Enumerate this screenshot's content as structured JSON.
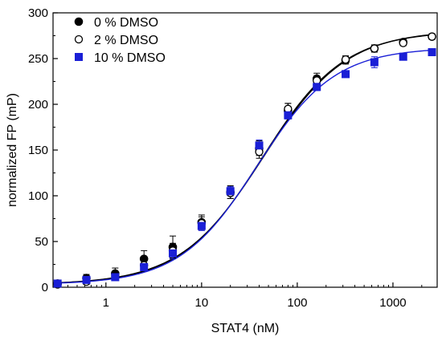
{
  "chart_data": {
    "type": "scatter",
    "xlabel": "STAT4 (nM)",
    "ylabel": "normalized FP (mP)",
    "xscale": "log",
    "xlim": [
      0.28,
      2900
    ],
    "ylim": [
      0,
      300
    ],
    "xticks": [
      1,
      10,
      100,
      1000
    ],
    "xtick_labels": [
      "1",
      "10",
      "100",
      "1000"
    ],
    "yticks": [
      0,
      50,
      100,
      150,
      200,
      250,
      300
    ],
    "ytick_labels": [
      "0",
      "50",
      "100",
      "150",
      "200",
      "250",
      "300"
    ],
    "grid": false,
    "legend_position": "top-left",
    "x": [
      0.3125,
      0.625,
      1.25,
      2.5,
      5,
      10,
      20,
      40,
      80,
      160,
      320,
      640,
      1280,
      2560
    ],
    "series": [
      {
        "name": "0 % DMSO",
        "marker": "filled-circle",
        "color": "#000000",
        "y": [
          4,
          10,
          15,
          31,
          44,
          71,
          104,
          152,
          193,
          228,
          248,
          261,
          268,
          274
        ],
        "err": [
          3,
          4,
          6,
          9,
          12,
          8,
          7,
          8,
          8,
          6,
          4,
          4,
          3,
          3
        ],
        "fit": {
          "bottom": 3,
          "top": 280,
          "ec50": 43,
          "hill": 1.02
        }
      },
      {
        "name": "2 % DMSO",
        "marker": "open-circle",
        "color": "#000000",
        "y": [
          3,
          6,
          12,
          24,
          40,
          70,
          103,
          148,
          195,
          226,
          249,
          261,
          267,
          274
        ],
        "err": [
          2,
          3,
          4,
          5,
          8,
          7,
          6,
          7,
          6,
          5,
          4,
          3,
          3,
          3
        ],
        "fit": {
          "bottom": 3,
          "top": 281,
          "ec50": 44,
          "hill": 1.0
        }
      },
      {
        "name": "10 % DMSO",
        "marker": "filled-square",
        "color": "#1a1fd6",
        "y": [
          4,
          8,
          11,
          22,
          37,
          67,
          105,
          155,
          188,
          219,
          233,
          246,
          252,
          257
        ],
        "err": [
          2,
          3,
          3,
          4,
          6,
          5,
          5,
          6,
          4,
          4,
          3,
          6,
          3,
          2
        ],
        "fit": {
          "bottom": 3,
          "top": 262,
          "ec50": 38,
          "hill": 1.07
        }
      }
    ]
  }
}
